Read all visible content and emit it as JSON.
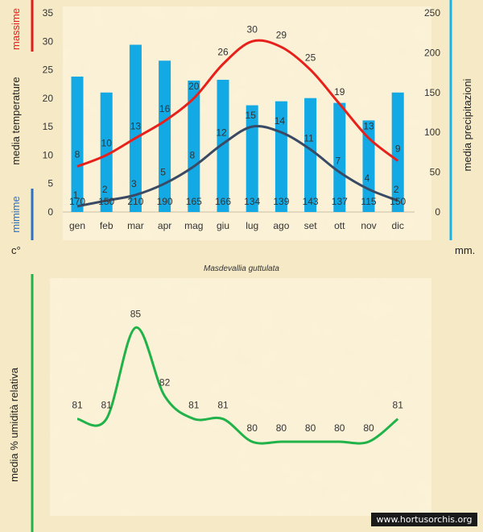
{
  "watermark": "www.hortusorchis.org",
  "colors": {
    "background": "#f6e9c6",
    "panel": "#fbf2d8",
    "bars": "#12a9e4",
    "max_line": "#e8201b",
    "min_line": "#3a4a64",
    "humidity_line": "#21b24a",
    "left_accent_red": "#e01c1c",
    "left_accent_blue": "#2d6fc0",
    "right_accent": "#1ab3e8",
    "humidity_accent": "#21b24a"
  },
  "chart_data": [
    {
      "type": "bar+line",
      "title": "Masdevallia guttulata",
      "categories": [
        "gen",
        "feb",
        "mar",
        "apr",
        "mag",
        "giu",
        "lug",
        "ago",
        "set",
        "ott",
        "nov",
        "dic"
      ],
      "series": [
        {
          "name": "media precipitazioni",
          "type": "bar",
          "axis": "right",
          "values": [
            170,
            150,
            210,
            190,
            165,
            166,
            134,
            139,
            143,
            137,
            115,
            150
          ]
        },
        {
          "name": "massime",
          "type": "line",
          "axis": "left",
          "values": [
            8,
            10,
            13,
            16,
            20,
            26,
            30,
            29,
            25,
            19,
            13,
            9
          ]
        },
        {
          "name": "mimime",
          "type": "line",
          "axis": "left",
          "values": [
            1,
            2,
            3,
            5,
            8,
            12,
            15,
            14,
            11,
            7,
            4,
            2
          ]
        }
      ],
      "left_axis": {
        "ylim": [
          0,
          35
        ],
        "ticks": [
          0,
          5,
          10,
          15,
          20,
          25,
          30,
          35
        ],
        "label": "media  temperature",
        "unit": "c°"
      },
      "right_axis": {
        "ylim": [
          0,
          250
        ],
        "ticks": [
          0,
          50,
          100,
          150,
          200,
          250
        ],
        "label": "media  precipitazioni",
        "unit": "mm."
      },
      "legend": {
        "max_label": "massime",
        "min_label": "mimime"
      }
    },
    {
      "type": "line",
      "categories": [
        "gen",
        "feb",
        "mar",
        "apr",
        "mag",
        "giu",
        "lug",
        "ago",
        "set",
        "ott",
        "nov",
        "dic"
      ],
      "series": [
        {
          "name": "media % umidità relativa",
          "values": [
            81,
            81,
            85,
            82,
            81,
            81,
            80,
            80,
            80,
            80,
            80,
            81
          ]
        }
      ],
      "ylabel": "media %  umidità relativa"
    }
  ]
}
